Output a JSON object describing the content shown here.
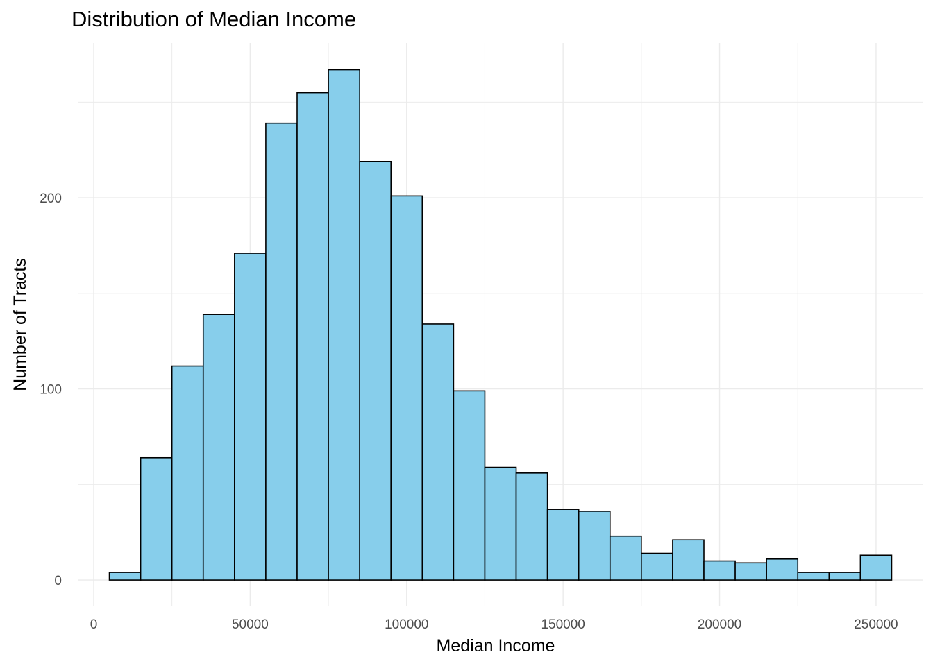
{
  "chart_data": {
    "type": "bar",
    "title": "Distribution of Median Income",
    "xlabel": "Median Income",
    "ylabel": "Number of Tracts",
    "bin_width": 10000,
    "bin_edges": [
      5000,
      15000,
      25000,
      35000,
      45000,
      55000,
      65000,
      75000,
      85000,
      95000,
      105000,
      115000,
      125000,
      135000,
      145000,
      155000,
      165000,
      175000,
      185000,
      195000,
      205000,
      215000,
      225000,
      235000,
      245000,
      255000
    ],
    "values": [
      4,
      64,
      112,
      139,
      171,
      239,
      255,
      267,
      219,
      201,
      134,
      99,
      59,
      56,
      37,
      36,
      23,
      14,
      21,
      10,
      9,
      11,
      4,
      4,
      13
    ],
    "x_ticks": [
      0,
      50000,
      100000,
      150000,
      200000,
      250000
    ],
    "x_tick_labels": [
      "0",
      "50000",
      "100000",
      "150000",
      "200000",
      "250000"
    ],
    "y_ticks": [
      0,
      100,
      200
    ],
    "y_tick_labels": [
      "0",
      "100",
      "200"
    ],
    "xlim": [
      -5100,
      265100
    ],
    "ylim": [
      -13.4,
      281
    ],
    "grid": true,
    "bar_fill": "#87CEEB",
    "bar_stroke": "#000000",
    "grid_color": "#ebebeb"
  }
}
